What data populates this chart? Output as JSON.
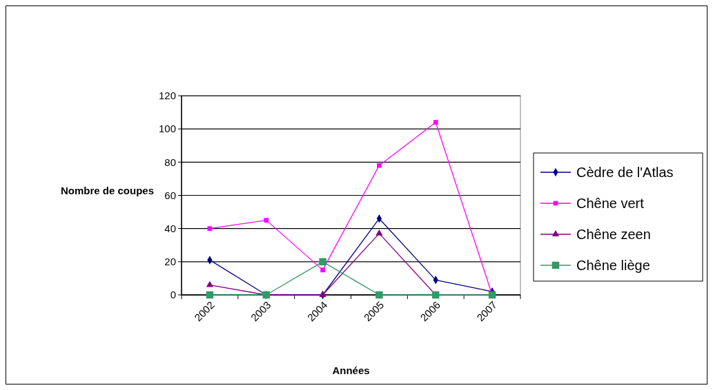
{
  "chart_data": {
    "type": "line",
    "xlabel": "Années",
    "ylabel": "Nombre de coupes",
    "categories": [
      "2002",
      "2003",
      "2004",
      "2005",
      "2006",
      "2007"
    ],
    "ylim": [
      0,
      120
    ],
    "yticks": [
      0,
      20,
      40,
      60,
      80,
      100,
      120
    ],
    "grid": "y",
    "legend": "right",
    "series": [
      {
        "name": "Cèdre de l'Atlas",
        "color": "#000080",
        "marker": "diamond",
        "values": [
          21,
          0,
          0,
          46,
          9,
          2
        ]
      },
      {
        "name": "Chêne vert",
        "color": "#ff00ff",
        "marker": "square",
        "values": [
          40,
          45,
          15,
          78,
          104,
          0
        ]
      },
      {
        "name": "Chêne zeen",
        "color": "#800080",
        "marker": "triangle",
        "values": [
          6,
          0,
          0,
          37,
          0,
          0
        ]
      },
      {
        "name": "Chêne liège",
        "color": "#339966",
        "marker": "square",
        "values": [
          0,
          0,
          20,
          0,
          0,
          0
        ]
      }
    ]
  }
}
